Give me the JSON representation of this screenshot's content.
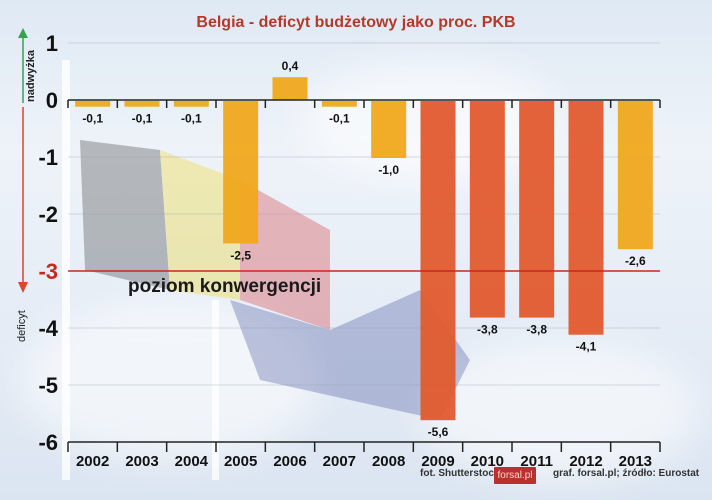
{
  "title": "Belgia - deficyt budżetowy jako proc. PKB",
  "axis_labels": {
    "up": "nadwyżka",
    "down": "deficyt"
  },
  "reference_line": {
    "value": -3,
    "label": "poziom konwergencji",
    "color": "#c8281c"
  },
  "credits": {
    "photo": "fot. Shutterstock",
    "logo": "forsal.pl",
    "source": "graf. forsal.pl;  źródło: Eurostat"
  },
  "colors": {
    "bar_normal": "#f0a81c",
    "bar_high": "#e25a2e",
    "title": "#b5392a",
    "arrow_up": "#3aa34a",
    "arrow_down": "#d9462a"
  },
  "chart_data": {
    "type": "bar",
    "title": "Belgia - deficyt budżetowy jako proc. PKB",
    "xlabel": "",
    "ylabel": "",
    "categories": [
      "2002",
      "2003",
      "2004",
      "2005",
      "2006",
      "2007",
      "2008",
      "2009",
      "2010",
      "2011",
      "2012",
      "2013"
    ],
    "values": [
      -0.1,
      -0.1,
      -0.1,
      -2.5,
      0.4,
      -0.1,
      -1.0,
      -5.6,
      -3.8,
      -3.8,
      -4.1,
      -2.6
    ],
    "value_labels": [
      "-0,1",
      "-0,1",
      "-0,1",
      "-2,5",
      "0,4",
      "-0,1",
      "-1,0",
      "-5,6",
      "-3,8",
      "-3,8",
      "-4,1",
      "-2,6"
    ],
    "bar_colors": [
      "#f0a81c",
      "#f0a81c",
      "#f0a81c",
      "#f0a81c",
      "#f0a81c",
      "#f0a81c",
      "#f0a81c",
      "#e25a2e",
      "#e25a2e",
      "#e25a2e",
      "#e25a2e",
      "#f0a81c"
    ],
    "ylim": [
      -6,
      1
    ],
    "yticks": [
      1,
      0,
      -1,
      -2,
      -3,
      -4,
      -5,
      -6
    ],
    "ytick_labels": [
      "1",
      "0",
      "-1",
      "-2",
      "-3",
      "-4",
      "-5",
      "-6"
    ],
    "grid": true,
    "legend": null,
    "annotations": [
      {
        "y": -3,
        "text": "poziom konwergencji"
      }
    ]
  }
}
